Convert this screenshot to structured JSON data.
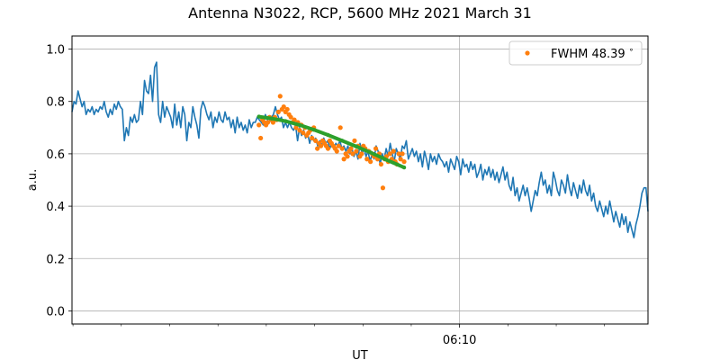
{
  "chart_data": {
    "type": "line",
    "title": "Antenna N3022, RCP, 5600 MHz 2021 March 31",
    "xlabel": "UT",
    "ylabel": "a.u.",
    "x_unit": "minutes since 06:00 UT",
    "xlim": [
      -0.028,
      16.236
    ],
    "ylim": [
      -0.05,
      1.05
    ],
    "x_major_ticks": [
      {
        "x": 10.916,
        "label": "06:10"
      }
    ],
    "x_minor_ticks": [
      0.0,
      1.364,
      2.729,
      4.094,
      5.458,
      6.822,
      8.187,
      9.551,
      12.28,
      13.645,
      15.009
    ],
    "y_ticks": [
      0.0,
      0.2,
      0.4,
      0.6,
      0.8,
      1.0
    ],
    "y_tick_labels": [
      "0.0",
      "0.2",
      "0.4",
      "0.6",
      "0.8",
      "1.0"
    ],
    "grid": true,
    "legend_position": "top-right",
    "series": [
      {
        "kind": "line",
        "color": "#1f77b4",
        "x_range": [
          -0.028,
          16.236
        ],
        "values": [
          0.76,
          0.8,
          0.79,
          0.84,
          0.81,
          0.78,
          0.8,
          0.75,
          0.77,
          0.76,
          0.78,
          0.75,
          0.77,
          0.76,
          0.78,
          0.77,
          0.8,
          0.76,
          0.74,
          0.77,
          0.75,
          0.79,
          0.77,
          0.8,
          0.78,
          0.77,
          0.65,
          0.7,
          0.67,
          0.74,
          0.72,
          0.75,
          0.72,
          0.73,
          0.8,
          0.75,
          0.88,
          0.84,
          0.83,
          0.9,
          0.8,
          0.93,
          0.95,
          0.75,
          0.72,
          0.8,
          0.74,
          0.78,
          0.76,
          0.74,
          0.7,
          0.79,
          0.71,
          0.76,
          0.7,
          0.78,
          0.75,
          0.65,
          0.72,
          0.7,
          0.78,
          0.74,
          0.71,
          0.66,
          0.77,
          0.8,
          0.78,
          0.75,
          0.73,
          0.76,
          0.7,
          0.74,
          0.72,
          0.76,
          0.73,
          0.72,
          0.76,
          0.73,
          0.74,
          0.7,
          0.73,
          0.68,
          0.74,
          0.7,
          0.72,
          0.69,
          0.71,
          0.68,
          0.73,
          0.7,
          0.72,
          0.72,
          0.74,
          0.73,
          0.72,
          0.71,
          0.75,
          0.73,
          0.72,
          0.74,
          0.75,
          0.78,
          0.75,
          0.73,
          0.74,
          0.7,
          0.72,
          0.7,
          0.72,
          0.7,
          0.69,
          0.71,
          0.65,
          0.7,
          0.67,
          0.69,
          0.66,
          0.68,
          0.64,
          0.67,
          0.65,
          0.66,
          0.63,
          0.65,
          0.63,
          0.66,
          0.64,
          0.65,
          0.62,
          0.64,
          0.62,
          0.64,
          0.63,
          0.65,
          0.62,
          0.63,
          0.61,
          0.63,
          0.6,
          0.62,
          0.59,
          0.61,
          0.58,
          0.64,
          0.6,
          0.62,
          0.59,
          0.61,
          0.57,
          0.6,
          0.58,
          0.63,
          0.61,
          0.56,
          0.6,
          0.58,
          0.62,
          0.59,
          0.64,
          0.6,
          0.57,
          0.62,
          0.6,
          0.58,
          0.63,
          0.62,
          0.65,
          0.58,
          0.6,
          0.62,
          0.59,
          0.61,
          0.57,
          0.6,
          0.55,
          0.61,
          0.58,
          0.54,
          0.6,
          0.57,
          0.59,
          0.56,
          0.6,
          0.58,
          0.57,
          0.55,
          0.57,
          0.53,
          0.58,
          0.56,
          0.54,
          0.59,
          0.57,
          0.52,
          0.58,
          0.55,
          0.56,
          0.53,
          0.57,
          0.54,
          0.56,
          0.51,
          0.53,
          0.56,
          0.5,
          0.54,
          0.52,
          0.55,
          0.51,
          0.54,
          0.5,
          0.53,
          0.49,
          0.52,
          0.55,
          0.5,
          0.53,
          0.48,
          0.46,
          0.51,
          0.44,
          0.47,
          0.42,
          0.45,
          0.48,
          0.44,
          0.47,
          0.43,
          0.38,
          0.42,
          0.46,
          0.44,
          0.49,
          0.53,
          0.48,
          0.5,
          0.45,
          0.48,
          0.44,
          0.53,
          0.5,
          0.46,
          0.44,
          0.5,
          0.48,
          0.45,
          0.52,
          0.47,
          0.44,
          0.49,
          0.46,
          0.43,
          0.48,
          0.45,
          0.5,
          0.46,
          0.44,
          0.48,
          0.42,
          0.45,
          0.4,
          0.38,
          0.42,
          0.39,
          0.36,
          0.4,
          0.37,
          0.42,
          0.38,
          0.34,
          0.38,
          0.35,
          0.32,
          0.37,
          0.33,
          0.36,
          0.3,
          0.34,
          0.31,
          0.28,
          0.33,
          0.36,
          0.4,
          0.45,
          0.47,
          0.47,
          0.38
        ]
      },
      {
        "kind": "scatter",
        "name": "FWHM 48.39$^\\circ$",
        "legend_label": "FWHM 48.39",
        "legend_superscript": "∘",
        "color": "#ff7f0e",
        "x": [
          5.25,
          5.3,
          5.35,
          5.4,
          5.45,
          5.5,
          5.55,
          5.6,
          5.65,
          5.7,
          5.75,
          5.8,
          5.85,
          5.9,
          5.95,
          6.0,
          6.05,
          6.1,
          6.15,
          6.2,
          6.25,
          6.3,
          6.35,
          6.4,
          6.45,
          6.5,
          6.55,
          6.6,
          6.65,
          6.7,
          6.75,
          6.8,
          6.85,
          6.9,
          6.95,
          7.0,
          7.05,
          7.1,
          7.15,
          7.2,
          7.25,
          7.3,
          7.35,
          7.4,
          7.45,
          7.5,
          7.55,
          7.6,
          7.65,
          7.7,
          7.75,
          7.8,
          7.85,
          7.9,
          7.95,
          8.0,
          8.05,
          8.1,
          8.15,
          8.2,
          8.25,
          8.3,
          8.35,
          8.4,
          8.45,
          8.5,
          8.55,
          8.6,
          8.65,
          8.7,
          8.75,
          8.8,
          8.85,
          8.9,
          8.95,
          9.0,
          9.05,
          9.1,
          9.15,
          9.2,
          9.25,
          9.3,
          9.35
        ],
        "y": [
          0.71,
          0.66,
          0.73,
          0.72,
          0.71,
          0.72,
          0.74,
          0.73,
          0.72,
          0.74,
          0.73,
          0.76,
          0.82,
          0.77,
          0.78,
          0.76,
          0.77,
          0.75,
          0.74,
          0.72,
          0.73,
          0.7,
          0.72,
          0.69,
          0.71,
          0.68,
          0.7,
          0.67,
          0.68,
          0.69,
          0.66,
          0.7,
          0.65,
          0.62,
          0.64,
          0.63,
          0.65,
          0.64,
          0.63,
          0.62,
          0.65,
          0.64,
          0.63,
          0.62,
          0.61,
          0.63,
          0.7,
          0.62,
          0.58,
          0.6,
          0.59,
          0.61,
          0.62,
          0.6,
          0.65,
          0.61,
          0.63,
          0.59,
          0.6,
          0.63,
          0.62,
          0.58,
          0.61,
          0.57,
          0.6,
          0.59,
          0.62,
          0.58,
          0.6,
          0.56,
          0.47,
          0.58,
          0.59,
          0.57,
          0.6,
          0.58,
          0.61,
          0.57,
          0.56,
          0.6,
          0.58,
          0.6,
          0.57
        ]
      },
      {
        "kind": "fit_line",
        "color": "#2ca02c",
        "x": [
          5.25,
          5.6,
          6.0,
          6.4,
          6.8,
          7.2,
          7.6,
          8.0,
          8.4,
          8.8,
          9.35
        ],
        "y": [
          0.742,
          0.735,
          0.725,
          0.71,
          0.692,
          0.672,
          0.65,
          0.628,
          0.605,
          0.58,
          0.548
        ]
      }
    ]
  }
}
